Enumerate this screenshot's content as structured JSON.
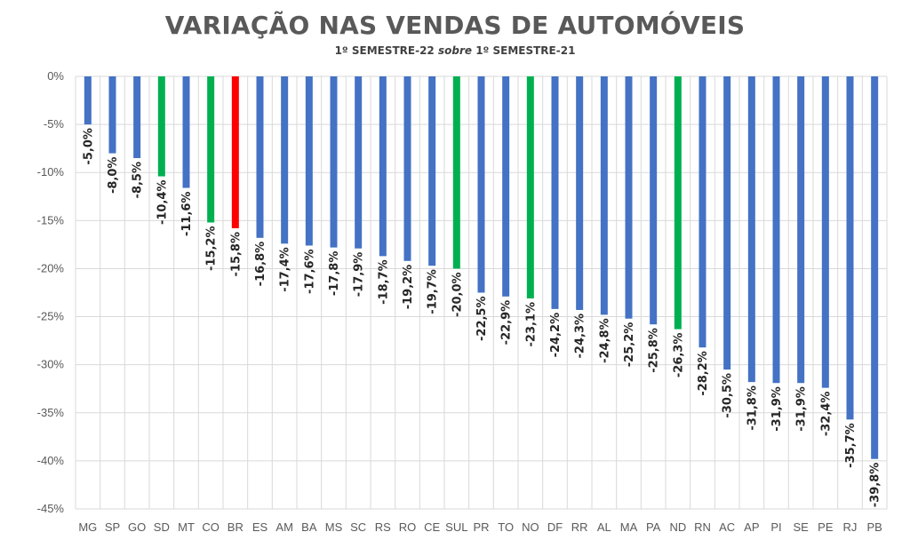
{
  "chart_data": {
    "type": "bar",
    "title": "VARIAÇÃO NAS VENDAS DE AUTOMÓVEIS",
    "subtitle": {
      "part1": "1º SEMESTRE-22 ",
      "italic": "sobre",
      "part2": " 1º SEMESTRE-21"
    },
    "categories": [
      "MG",
      "SP",
      "GO",
      "SD",
      "MT",
      "CO",
      "BR",
      "ES",
      "AM",
      "BA",
      "MS",
      "SC",
      "RS",
      "RO",
      "CE",
      "SUL",
      "PR",
      "TO",
      "NO",
      "DF",
      "RR",
      "AL",
      "MA",
      "PA",
      "ND",
      "RN",
      "AC",
      "AP",
      "PI",
      "SE",
      "PE",
      "RJ",
      "PB"
    ],
    "values": [
      -5.0,
      -8.0,
      -8.5,
      -10.4,
      -11.6,
      -15.2,
      -15.8,
      -16.8,
      -17.4,
      -17.6,
      -17.8,
      -17.9,
      -18.7,
      -19.2,
      -19.7,
      -20.0,
      -22.5,
      -22.9,
      -23.1,
      -24.2,
      -24.3,
      -24.8,
      -25.2,
      -25.8,
      -26.3,
      -28.2,
      -30.5,
      -31.8,
      -31.9,
      -31.9,
      -32.4,
      -35.7,
      -39.8
    ],
    "data_labels": [
      "-5,0%",
      "-8,0%",
      "-8,5%",
      "-10,4%",
      "-11,6%",
      "-15,2%",
      "-15,8%",
      "-16,8%",
      "-17,4%",
      "-17,6%",
      "-17,8%",
      "-17,9%",
      "-18,7%",
      "-19,2%",
      "-19,7%",
      "-20,0%",
      "-22,5%",
      "-22,9%",
      "-23,1%",
      "-24,2%",
      "-24,3%",
      "-24,8%",
      "-25,2%",
      "-25,8%",
      "-26,3%",
      "-28,2%",
      "-30,5%",
      "-31,8%",
      "-31,9%",
      "-31,9%",
      "-32,4%",
      "-35,7%",
      "-39,8%"
    ],
    "bar_colors": [
      "#4472c4",
      "#4472c4",
      "#4472c4",
      "#00b050",
      "#4472c4",
      "#00b050",
      "#ff0000",
      "#4472c4",
      "#4472c4",
      "#4472c4",
      "#4472c4",
      "#4472c4",
      "#4472c4",
      "#4472c4",
      "#4472c4",
      "#00b050",
      "#4472c4",
      "#4472c4",
      "#00b050",
      "#4472c4",
      "#4472c4",
      "#4472c4",
      "#4472c4",
      "#4472c4",
      "#00b050",
      "#4472c4",
      "#4472c4",
      "#4472c4",
      "#4472c4",
      "#4472c4",
      "#4472c4",
      "#4472c4",
      "#4472c4"
    ],
    "ylim": [
      -45,
      0
    ],
    "yticks": [
      0,
      -5,
      -10,
      -15,
      -20,
      -25,
      -30,
      -35,
      -40,
      -45
    ],
    "ytick_labels": [
      "0%",
      "-5%",
      "-10%",
      "-15%",
      "-20%",
      "-25%",
      "-30%",
      "-35%",
      "-40%",
      "-45%"
    ],
    "grid": true,
    "xlabel": "",
    "ylabel": ""
  }
}
